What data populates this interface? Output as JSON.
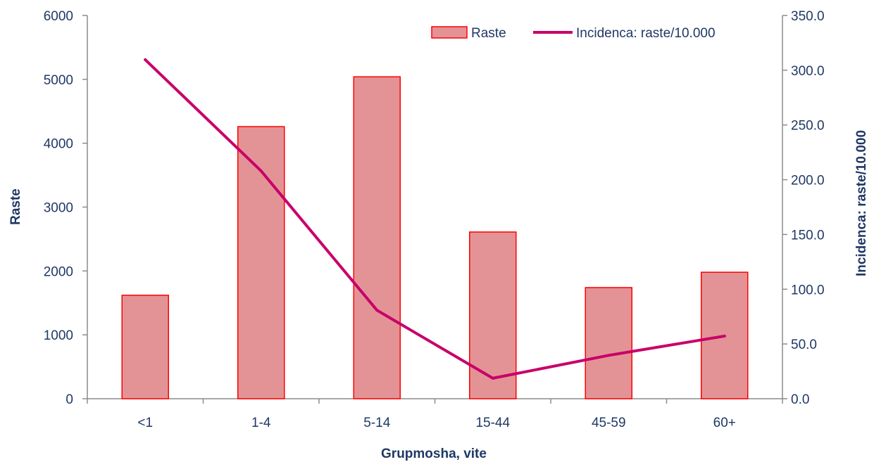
{
  "chart_data": {
    "type": "bar",
    "categories": [
      "<1",
      "1-4",
      "5-14",
      "15-44",
      "45-59",
      "60+"
    ],
    "series": [
      {
        "name": "Raste",
        "type": "bar",
        "axis": "left",
        "values": [
          1620,
          4260,
          5040,
          2610,
          1740,
          1980
        ]
      },
      {
        "name": "Incidenca: raste/10.000",
        "type": "line",
        "axis": "right",
        "values": [
          309.6,
          208.0,
          80.8,
          18.7,
          39.6,
          57.2
        ]
      }
    ],
    "xlabel": "Grupmosha, vite",
    "ylabel": "Raste",
    "y2label": "Incidenca: raste/10.000",
    "ylim": [
      0,
      6000
    ],
    "y2lim": [
      0,
      350
    ],
    "yticks": [
      "0",
      "1000",
      "2000",
      "3000",
      "4000",
      "5000",
      "6000"
    ],
    "y2ticks": [
      "0.0",
      "50.0",
      "100.0",
      "150.0",
      "200.0",
      "250.0",
      "300.0",
      "350.0"
    ],
    "grid": false,
    "legend_position": "top-right",
    "colors": {
      "bar_fill": "#e39395",
      "bar_stroke": "#ff0000",
      "line": "#c8006a",
      "axis": "#8c8c8c",
      "text": "#1f3864"
    }
  }
}
